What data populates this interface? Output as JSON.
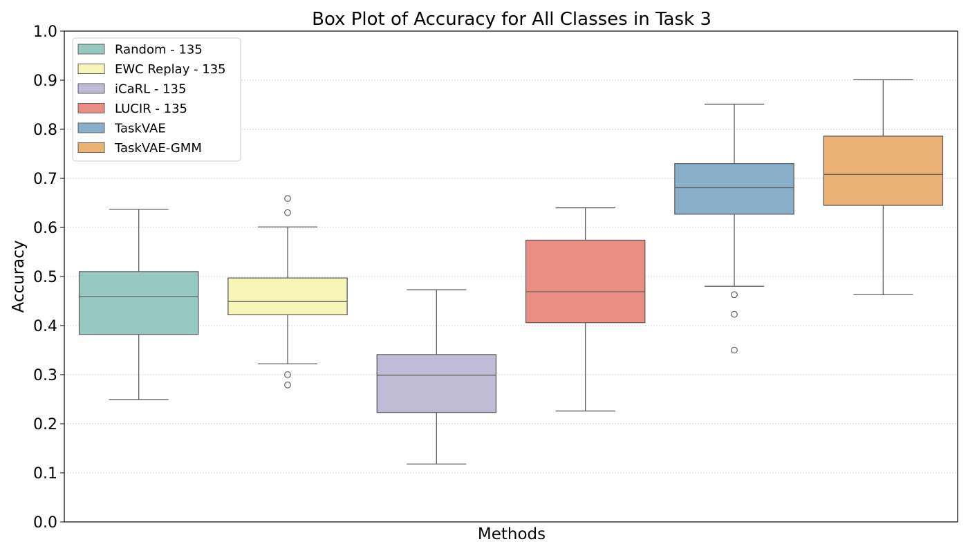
{
  "chart_data": {
    "type": "box",
    "title": "Box Plot of Accuracy for All Classes in Task 3",
    "xlabel": "Methods",
    "ylabel": "Accuracy",
    "ylim": [
      0,
      1.0
    ],
    "yticks": [
      "0.0",
      "0.1",
      "0.2",
      "0.3",
      "0.4",
      "0.5",
      "0.6",
      "0.7",
      "0.8",
      "0.9",
      "1.0"
    ],
    "grid": "y-dotted",
    "legend_position": "top-left",
    "series": [
      {
        "name": "Random - 135",
        "color": "#96c9c1",
        "whisker_low": 0.249,
        "q1": 0.382,
        "median": 0.459,
        "q3": 0.51,
        "whisker_high": 0.637,
        "outliers": []
      },
      {
        "name": "EWC Replay - 135",
        "color": "#f7f6b8",
        "whisker_low": 0.322,
        "q1": 0.422,
        "median": 0.449,
        "q3": 0.497,
        "whisker_high": 0.601,
        "outliers": [
          0.659,
          0.63,
          0.3,
          0.279
        ]
      },
      {
        "name": "iCaRL - 135",
        "color": "#c0bcd6",
        "whisker_low": 0.118,
        "q1": 0.223,
        "median": 0.299,
        "q3": 0.341,
        "whisker_high": 0.473,
        "outliers": []
      },
      {
        "name": "LUCIR - 135",
        "color": "#ea8e83",
        "whisker_low": 0.226,
        "q1": 0.406,
        "median": 0.469,
        "q3": 0.574,
        "whisker_high": 0.64,
        "outliers": []
      },
      {
        "name": "TaskVAE",
        "color": "#89afcb",
        "whisker_low": 0.48,
        "q1": 0.627,
        "median": 0.681,
        "q3": 0.73,
        "whisker_high": 0.851,
        "outliers": [
          0.463,
          0.423,
          0.35
        ]
      },
      {
        "name": "TaskVAE-GMM",
        "color": "#ebb274",
        "whisker_low": 0.463,
        "q1": 0.645,
        "median": 0.708,
        "q3": 0.786,
        "whisker_high": 0.901,
        "outliers": []
      }
    ]
  }
}
